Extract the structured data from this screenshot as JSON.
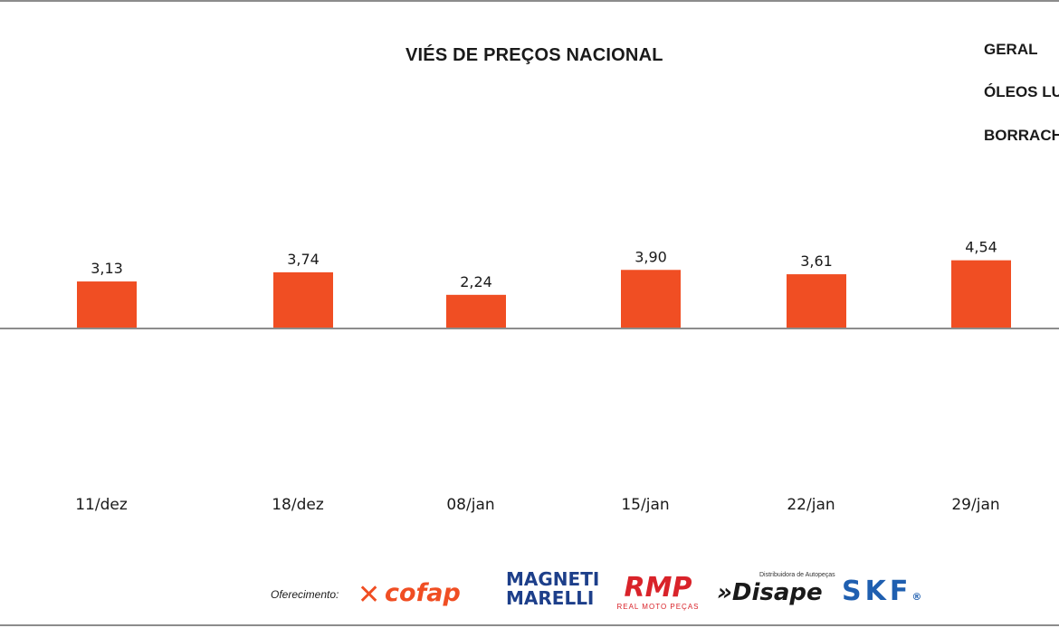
{
  "chart_data": {
    "type": "bar",
    "title": "VIÉS DE PREÇOS NACIONAL",
    "categories": [
      "11/dez",
      "18/dez",
      "08/jan",
      "15/jan",
      "22/jan",
      "29/jan"
    ],
    "values": [
      3.13,
      3.74,
      2.24,
      3.9,
      3.61,
      4.54
    ],
    "value_labels": [
      "3,13",
      "3,74",
      "2,24",
      "3,90",
      "3,61",
      "4,54"
    ],
    "legend": [
      "GERAL",
      "ÓLEOS LU",
      "BORRACH"
    ],
    "legend_placement": "top-right",
    "xlabel": "",
    "ylabel": "",
    "grid": false,
    "colors": {
      "bar": "#f04e23",
      "baseline": "#8c8c8c"
    }
  },
  "sponsors": {
    "label": "Oferecimento:",
    "logos": [
      {
        "name": "cofap",
        "text": "cofap",
        "color": "#f04e23"
      },
      {
        "name": "magneti-marelli",
        "line1": "MAGNETI",
        "line2": "MARELLI",
        "color": "#1d3f8a"
      },
      {
        "name": "rmp",
        "text": "RMP",
        "tagline": "REAL MOTO PEÇAS",
        "color": "#d9232a"
      },
      {
        "name": "disape",
        "text": "»Disape",
        "tagline": "Distribuidora de Autopeças",
        "color": "#1a1a1a"
      },
      {
        "name": "skf",
        "text": "SKF",
        "mark": "®",
        "color": "#1f5fb0"
      }
    ]
  }
}
